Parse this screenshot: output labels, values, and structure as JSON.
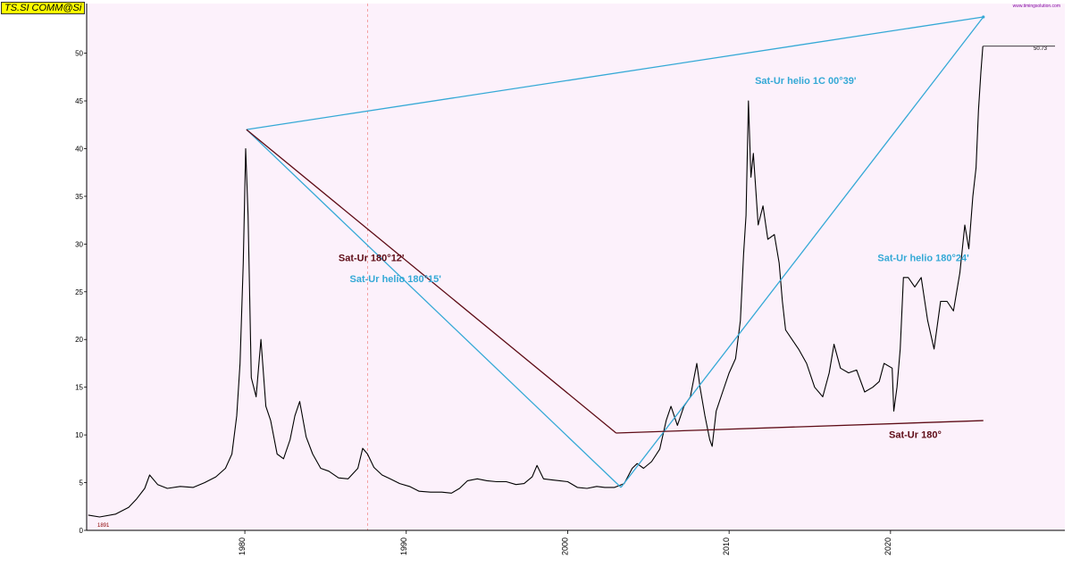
{
  "symbol_label": "TS.SI COMM@Si",
  "credit_text": "www.timingsolution.com",
  "start_label": "1891",
  "last_value_label": "50.73",
  "colors": {
    "background": "#fcf1fb",
    "price": "#000000",
    "cyan_line": "#35a9d6",
    "dark_red_line": "#5e0c16"
  },
  "chart_data": {
    "type": "line",
    "title": "",
    "xlabel": "",
    "ylabel": "",
    "xlim": [
      1970.2,
      2030.8
    ],
    "ylim": [
      0,
      55.2
    ],
    "yticks": [
      0,
      5,
      10,
      15,
      20,
      25,
      30,
      35,
      40,
      45,
      50
    ],
    "xticks": [
      {
        "value": 1980,
        "label": "1980",
        "color": "#000000"
      },
      {
        "value": 1990,
        "label": "1990",
        "color": "#000000"
      },
      {
        "value": 2000,
        "label": "2000",
        "color": "#8b0000"
      },
      {
        "value": 2010,
        "label": "2010",
        "color": "#000000"
      },
      {
        "value": 2020,
        "label": "2020",
        "color": "#000000"
      }
    ],
    "grid": false,
    "vline": 1987.6,
    "price_series": {
      "name": "",
      "x": [
        1970.3,
        1971.0,
        1972.0,
        1972.8,
        1973.3,
        1973.8,
        1974.1,
        1974.6,
        1975.2,
        1976.0,
        1976.8,
        1977.5,
        1978.2,
        1978.8,
        1979.2,
        1979.5,
        1979.7,
        1979.9,
        1980.05,
        1980.2,
        1980.4,
        1980.7,
        1981.0,
        1981.3,
        1981.6,
        1982.0,
        1982.4,
        1982.8,
        1983.1,
        1983.4,
        1983.8,
        1984.2,
        1984.7,
        1985.2,
        1985.8,
        1986.4,
        1987.0,
        1987.3,
        1987.6,
        1988.0,
        1988.5,
        1989.0,
        1989.6,
        1990.2,
        1990.8,
        1991.5,
        1992.2,
        1992.8,
        1993.3,
        1993.8,
        1994.4,
        1995.0,
        1995.6,
        1996.2,
        1996.8,
        1997.3,
        1997.8,
        1998.1,
        1998.5,
        1999.0,
        1999.5,
        2000.0,
        2000.6,
        2001.2,
        2001.8,
        2002.3,
        2002.9,
        2003.5,
        2004.0,
        2004.3,
        2004.7,
        2005.2,
        2005.7,
        2006.1,
        2006.4,
        2006.8,
        2007.2,
        2007.6,
        2008.0,
        2008.2,
        2008.5,
        2008.8,
        2008.95,
        2009.2,
        2009.6,
        2010.0,
        2010.4,
        2010.7,
        2010.9,
        2011.05,
        2011.2,
        2011.35,
        2011.5,
        2011.8,
        2012.1,
        2012.4,
        2012.8,
        2013.1,
        2013.3,
        2013.5,
        2013.9,
        2014.3,
        2014.8,
        2015.3,
        2015.8,
        2016.2,
        2016.5,
        2016.9,
        2017.4,
        2017.9,
        2018.4,
        2018.9,
        2019.3,
        2019.6,
        2020.1,
        2020.2,
        2020.4,
        2020.6,
        2020.8,
        2021.1,
        2021.5,
        2021.9,
        2022.3,
        2022.7,
        2023.1,
        2023.5,
        2023.9,
        2024.3,
        2024.6,
        2024.85,
        2025.1,
        2025.3,
        2025.45,
        2025.6,
        2025.72
      ],
      "y": [
        1.6,
        1.4,
        1.7,
        2.4,
        3.3,
        4.4,
        5.8,
        4.8,
        4.4,
        4.6,
        4.5,
        5.0,
        5.6,
        6.5,
        8.0,
        12.0,
        17.5,
        28.0,
        40.0,
        33.0,
        16.0,
        14.0,
        20.0,
        13.0,
        11.5,
        8.0,
        7.5,
        9.5,
        12.0,
        13.5,
        9.8,
        8.0,
        6.5,
        6.2,
        5.5,
        5.4,
        6.5,
        8.6,
        8.0,
        6.6,
        5.8,
        5.4,
        4.9,
        4.6,
        4.1,
        4.0,
        4.0,
        3.9,
        4.4,
        5.2,
        5.4,
        5.2,
        5.1,
        5.1,
        4.8,
        4.9,
        5.6,
        6.8,
        5.4,
        5.3,
        5.2,
        5.1,
        4.5,
        4.4,
        4.6,
        4.5,
        4.5,
        4.9,
        6.5,
        7.0,
        6.5,
        7.2,
        8.5,
        11.5,
        13.0,
        11.0,
        13.0,
        14.0,
        17.5,
        15.0,
        12.0,
        9.5,
        8.8,
        12.5,
        14.5,
        16.5,
        18.0,
        22.0,
        29.0,
        33.0,
        45.0,
        37.0,
        39.5,
        32.0,
        34.0,
        30.5,
        31.0,
        28.0,
        24.0,
        21.0,
        20.0,
        19.0,
        17.5,
        15.0,
        14.0,
        16.5,
        19.5,
        17.0,
        16.5,
        16.8,
        14.5,
        15.0,
        15.6,
        17.5,
        17.0,
        12.5,
        15.0,
        19.0,
        26.5,
        26.5,
        25.5,
        26.5,
        22.0,
        19.0,
        24.0,
        24.0,
        23.0,
        27.0,
        32.0,
        29.5,
        35.0,
        38.0,
        44.0,
        48.0,
        50.73
      ]
    },
    "overlay_lines": [
      {
        "name": "Sat-Ur helio 1C 00°39'",
        "color": "#35a9d6",
        "points": [
          [
            1980.1,
            42.0
          ],
          [
            2025.75,
            53.8
          ]
        ],
        "label_pos": [
          2011.6,
          46.8
        ]
      },
      {
        "name": "Sat-Ur helio 180°15'",
        "color": "#35a9d6",
        "points": [
          [
            1980.1,
            42.0
          ],
          [
            2003.3,
            4.5
          ]
        ],
        "label_pos": [
          1986.5,
          26.0
        ]
      },
      {
        "name": "Sat-Ur 180°12'",
        "color": "#5e0c16",
        "points": [
          [
            1980.1,
            42.0
          ],
          [
            2003.0,
            10.2
          ]
        ],
        "label_pos": [
          1985.8,
          28.2
        ]
      },
      {
        "name": "Sat-Ur helio 180°24'",
        "color": "#35a9d6",
        "points": [
          [
            2003.3,
            4.5
          ],
          [
            2025.75,
            53.8
          ]
        ],
        "label_pos": [
          2019.2,
          28.2
        ]
      },
      {
        "name": "Sat-Ur 180°",
        "color": "#5e0c16",
        "points": [
          [
            2003.0,
            10.2
          ],
          [
            2025.75,
            11.5
          ]
        ],
        "label_pos": [
          2019.9,
          9.7
        ]
      }
    ]
  }
}
